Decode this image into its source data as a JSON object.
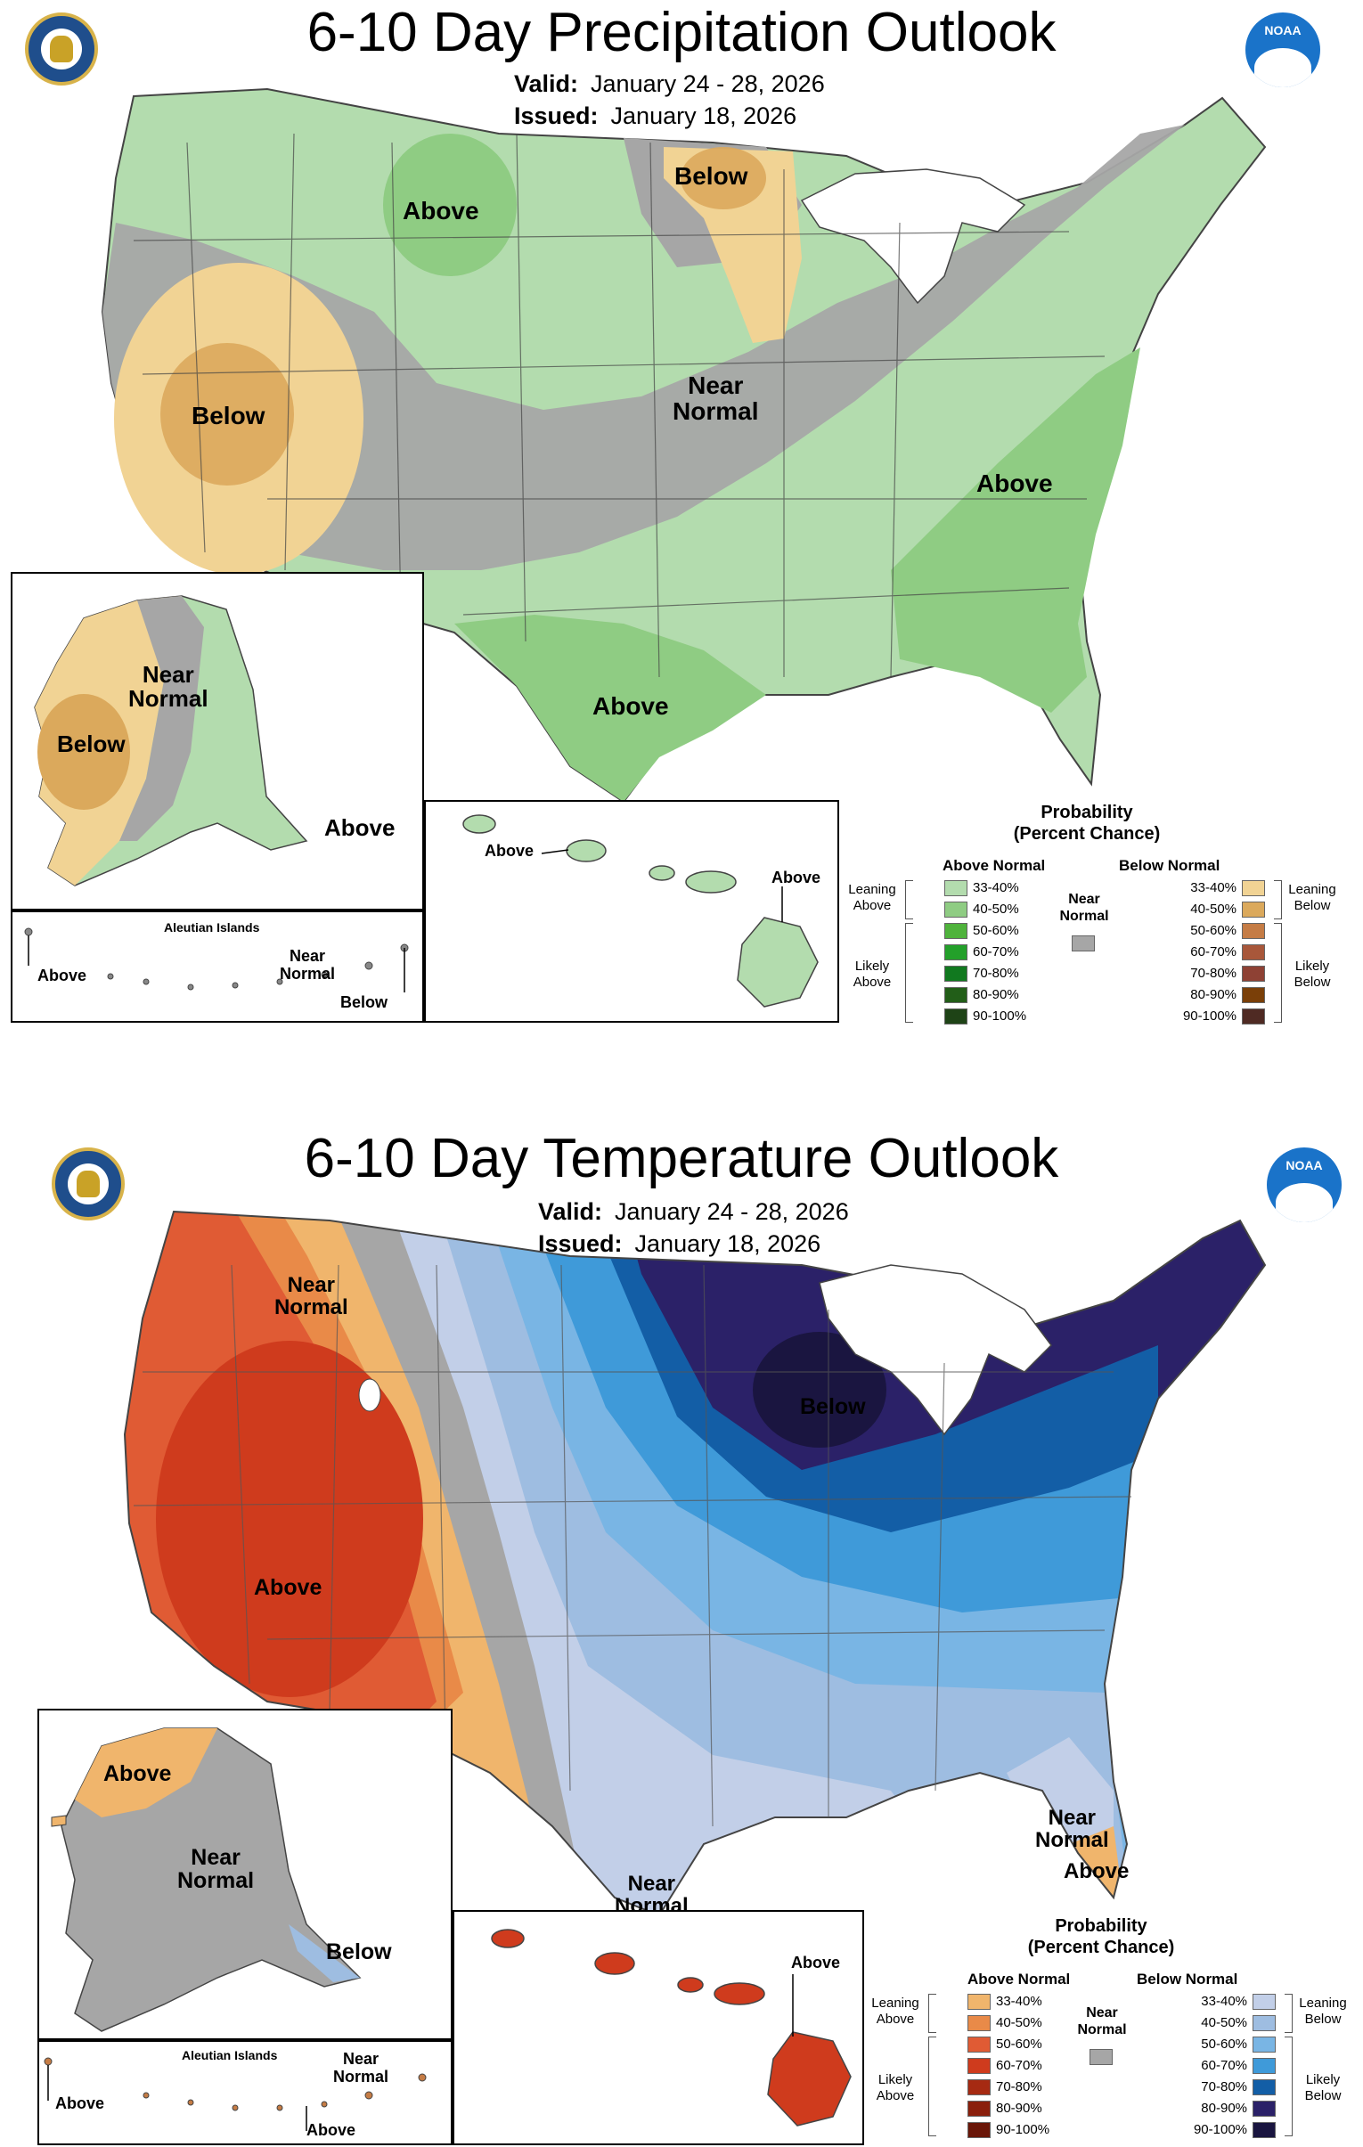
{
  "precipitation": {
    "title": "6-10 Day Precipitation Outlook",
    "valid_label": "Valid:",
    "valid_value": "January 24 - 28, 2026",
    "issued_label": "Issued:",
    "issued_value": "January 18, 2026",
    "labels": {
      "above_north": "Above",
      "below_west": "Below",
      "below_north": "Below",
      "near_normal_l1": "Near",
      "near_normal_l2": "Normal",
      "above_southeast": "Above",
      "above_texas": "Above"
    },
    "alaska": {
      "near_l1": "Near",
      "near_l2": "Normal",
      "below": "Below",
      "above": "Above"
    },
    "aleutian": {
      "title": "Aleutian Islands",
      "above": "Above",
      "near_l1": "Near",
      "near_l2": "Normal",
      "below": "Below"
    },
    "hawaii": {
      "above_left": "Above",
      "above_right": "Above"
    },
    "legend": {
      "title_l1": "Probability",
      "title_l2": "(Percent Chance)",
      "above_header": "Above Normal",
      "below_header": "Below Normal",
      "near_l1": "Near",
      "near_l2": "Normal",
      "leaning_above_l1": "Leaning",
      "leaning_above_l2": "Above",
      "likely_above_l1": "Likely",
      "likely_above_l2": "Above",
      "leaning_below_l1": "Leaning",
      "leaning_below_l2": "Below",
      "likely_below_l1": "Likely",
      "likely_below_l2": "Below",
      "ranges": [
        "33-40%",
        "40-50%",
        "50-60%",
        "60-70%",
        "70-80%",
        "80-90%",
        "90-100%"
      ],
      "above_colors": [
        "#b3dcae",
        "#8fcc83",
        "#4fb33c",
        "#23a02a",
        "#11791f",
        "#225e18",
        "#1e4316"
      ],
      "below_colors": [
        "#f1d394",
        "#dba95c",
        "#c57c45",
        "#a8573a",
        "#8e4134",
        "#7a3f08",
        "#4f2a23"
      ],
      "near_color": "#a6a6a6"
    }
  },
  "temperature": {
    "title": "6-10 Day Temperature Outlook",
    "valid_label": "Valid:",
    "valid_value": "January 24 - 28, 2026",
    "issued_label": "Issued:",
    "issued_value": "January 18, 2026",
    "labels": {
      "near_nw_l1": "Near",
      "near_nw_l2": "Normal",
      "above_west": "Above",
      "below_great_lakes": "Below",
      "near_fl_l1": "Near",
      "near_fl_l2": "Normal",
      "above_fl": "Above",
      "near_tx_l1": "Near",
      "near_tx_l2": "Normal"
    },
    "alaska": {
      "above": "Above",
      "near_l1": "Near",
      "near_l2": "Normal",
      "below": "Below"
    },
    "aleutian": {
      "title": "Aleutian Islands",
      "above_left": "Above",
      "near_l1": "Near",
      "near_l2": "Normal",
      "above_bottom": "Above"
    },
    "hawaii": {
      "above": "Above"
    },
    "legend": {
      "title_l1": "Probability",
      "title_l2": "(Percent Chance)",
      "above_header": "Above Normal",
      "below_header": "Below Normal",
      "near_l1": "Near",
      "near_l2": "Normal",
      "leaning_above_l1": "Leaning",
      "leaning_above_l2": "Above",
      "likely_above_l1": "Likely",
      "likely_above_l2": "Above",
      "leaning_below_l1": "Leaning",
      "leaning_below_l2": "Below",
      "likely_below_l1": "Likely",
      "likely_below_l2": "Below",
      "ranges": [
        "33-40%",
        "40-50%",
        "50-60%",
        "60-70%",
        "70-80%",
        "80-90%",
        "90-100%"
      ],
      "above_colors": [
        "#f0b56c",
        "#e98a48",
        "#e05b34",
        "#cf3b1d",
        "#a62a12",
        "#8a1f0c",
        "#6a1608"
      ],
      "below_colors": [
        "#c2cfe8",
        "#9ebde1",
        "#79b5e4",
        "#3f9ad9",
        "#135ea6",
        "#2b2168",
        "#1a1540"
      ],
      "near_color": "#a6a6a6"
    }
  }
}
